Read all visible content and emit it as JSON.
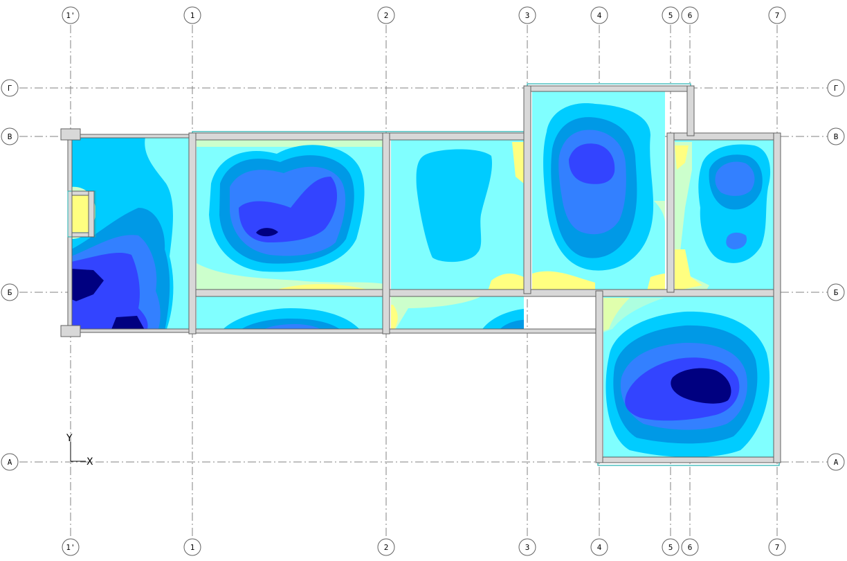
{
  "grid": {
    "vertical_axes": [
      "1'",
      "1",
      "2",
      "3",
      "4",
      "5",
      "6",
      "7"
    ],
    "horizontal_axes": [
      "Г",
      "В",
      "Б",
      "А"
    ]
  },
  "ucs": {
    "x_label": "X",
    "y_label": "Y"
  },
  "colors": {
    "background": "#ffffff",
    "grid_line": "#808080",
    "wall_fill": "#d8d8d8",
    "wall_stroke": "#606060",
    "slab_edge": "#20b0b0",
    "contour_levels": [
      "#ffff80",
      "#ccffcc",
      "#80ffff",
      "#00ccff",
      "#0099e6",
      "#3380ff",
      "#3344ff",
      "#000080"
    ]
  }
}
